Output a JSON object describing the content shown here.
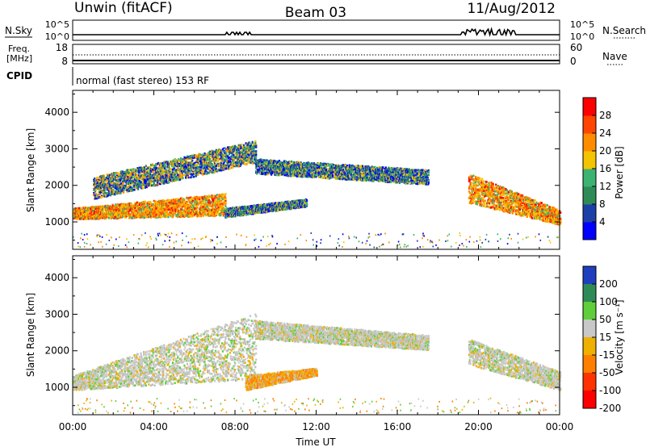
{
  "header": {
    "radar": "Unwin (fitACF)",
    "beam": "Beam 03",
    "date": "11/Aug/2012"
  },
  "top_panels": {
    "nsky_label": "N.Sky",
    "nsearch_label": "N.Search",
    "nsky_ticks": [
      "10^5",
      "10^0"
    ],
    "nsearch_ticks": [
      "10^5",
      "10^0"
    ],
    "freq_label_1": "Freq.",
    "freq_label_2": "[MHz]",
    "freq_ticks": [
      "18",
      "8"
    ],
    "nave_label": "Nave",
    "nave_ticks": [
      "60",
      "0"
    ],
    "cpid_label": "CPID",
    "cpid_text": "normal (fast stereo) 153 RF"
  },
  "chart_data": [
    {
      "type": "heatmap",
      "name": "power",
      "xlabel": "",
      "ylabel": "Slant Range [km]",
      "ylim": [
        250,
        4600
      ],
      "yticks": [
        "1000",
        "2000",
        "3000",
        "4000"
      ],
      "x_range_hours": [
        0,
        24
      ],
      "colorbar": {
        "label": "Power [dB]",
        "ticks": [
          "4",
          "8",
          "12",
          "16",
          "20",
          "24",
          "28"
        ],
        "colors": [
          "#0000ff",
          "#1d3fa8",
          "#2e8b57",
          "#3cb371",
          "#f5c400",
          "#ff8c00",
          "#ff4500",
          "#ff0000"
        ]
      },
      "echo_bands": [
        {
          "start": 0.0,
          "end": 7.5,
          "range_start": [
            1050,
            1350
          ],
          "range_end": [
            1150,
            1750
          ],
          "level": "high"
        },
        {
          "start": 1.0,
          "end": 9.0,
          "range_start": [
            1600,
            2200
          ],
          "range_end": [
            2600,
            3200
          ],
          "level": "medium"
        },
        {
          "start": 7.5,
          "end": 11.5,
          "range_start": [
            1100,
            1350
          ],
          "range_end": [
            1400,
            1600
          ],
          "level": "low"
        },
        {
          "start": 9.0,
          "end": 17.5,
          "range_start": [
            2300,
            2700
          ],
          "range_end": [
            2000,
            2400
          ],
          "level": "low"
        },
        {
          "start": 19.5,
          "end": 24.0,
          "range_start": [
            1500,
            2300
          ],
          "range_end": [
            900,
            1300
          ],
          "level": "high"
        }
      ]
    },
    {
      "type": "heatmap",
      "name": "velocity",
      "xlabel": "Time UT",
      "ylabel": "Slant Range [km]",
      "ylim": [
        250,
        4600
      ],
      "yticks": [
        "1000",
        "2000",
        "3000",
        "4000"
      ],
      "xticks": [
        "00:00",
        "04:00",
        "08:00",
        "12:00",
        "16:00",
        "20:00",
        "00:00"
      ],
      "x_range_hours": [
        0,
        24
      ],
      "colorbar": {
        "label": "Velocity [m s⁻¹]",
        "ticks": [
          "200",
          "100",
          "50",
          "15",
          "-15",
          "-50",
          "-100",
          "-200"
        ],
        "colors": [
          "#1f3fbf",
          "#2e8b57",
          "#5fce3b",
          "#c8c8c8",
          "#f0b000",
          "#ff7f00",
          "#ff3300",
          "#ff0000"
        ]
      },
      "echo_bands": [
        {
          "start": 0.0,
          "end": 9.0,
          "range_start": [
            900,
            1300
          ],
          "range_end": [
            1200,
            3000
          ],
          "level": "ground"
        },
        {
          "start": 8.5,
          "end": 12.0,
          "range_start": [
            900,
            1300
          ],
          "range_end": [
            1300,
            1500
          ],
          "level": "away"
        },
        {
          "start": 9.0,
          "end": 17.5,
          "range_start": [
            2300,
            2800
          ],
          "range_end": [
            2000,
            2400
          ],
          "level": "ground"
        },
        {
          "start": 19.5,
          "end": 24.0,
          "range_start": [
            1600,
            2300
          ],
          "range_end": [
            900,
            1400
          ],
          "level": "ground"
        }
      ]
    }
  ]
}
